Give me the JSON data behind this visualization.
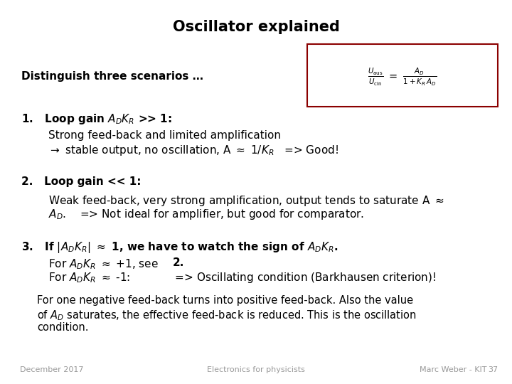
{
  "title": "Oscillator explained",
  "title_fontsize": 15,
  "bg_color": "#ffffff",
  "text_color": "#000000",
  "box_color": "#8b0000",
  "footer_left": "December 2017",
  "footer_center": "Electronics for physicists",
  "footer_right": "Marc Weber - KIT",
  "footer_page": "37",
  "formula": "$\\frac{U_{\\mathrm{aus}}}{U_{\\mathrm{cin}}} \\ = \\ \\frac{A_D}{1 + K_R \\, A_D}$"
}
